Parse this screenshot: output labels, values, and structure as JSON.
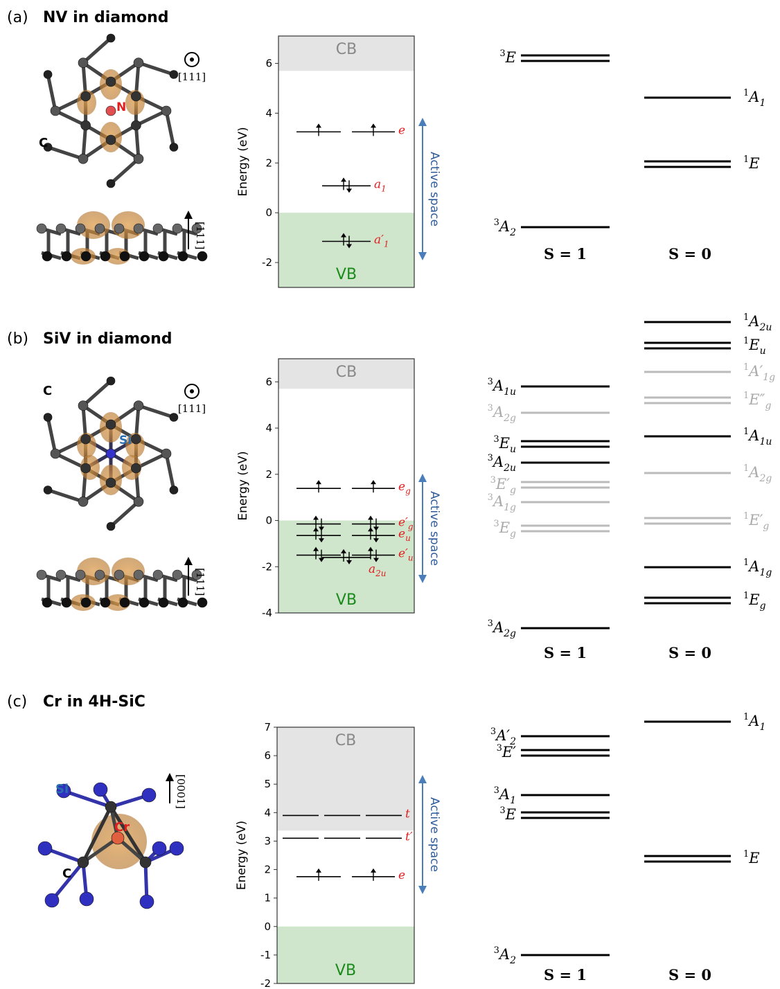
{
  "panels": [
    {
      "label": "(a)",
      "title": "NV in diamond",
      "structure": {
        "atoms": [
          "N",
          "C"
        ],
        "axis_top": "[111]",
        "axis_side": "[111]"
      },
      "energy": {
        "ylabel": "Energy (eV)",
        "ylim": [
          -3,
          7.1
        ],
        "yticks": [
          -2,
          0,
          2,
          4,
          6
        ],
        "cb_label": "CB",
        "cb_min": 5.7,
        "vb_label": "VB",
        "vb_max": 0,
        "active_label": "Active space",
        "orbitals": [
          {
            "name": "e",
            "energy": 3.25,
            "electrons": [
              1,
              1
            ]
          },
          {
            "name": "a",
            "sub": "1",
            "energy": 1.08,
            "electrons": [
              2
            ]
          },
          {
            "name": "a′",
            "sub": "1",
            "energy": -1.15,
            "electrons": [
              2
            ]
          }
        ]
      },
      "states": {
        "s1_label": "S = 1",
        "s0_label": "S = 0",
        "s1": [
          {
            "spin": "3",
            "term": "E",
            "color": "#000"
          },
          {
            "spin": "3",
            "term": "A",
            "sub": "2",
            "color": "#000"
          }
        ],
        "s0": [
          {
            "spin": "1",
            "term": "A",
            "sub": "1",
            "color": "#000"
          },
          {
            "spin": "1",
            "term": "E",
            "color": "#000"
          }
        ]
      }
    },
    {
      "label": "(b)",
      "title": "SiV in diamond",
      "structure": {
        "atoms": [
          "Si",
          "C"
        ],
        "axis_top": "[111]",
        "axis_side": "[111]"
      },
      "energy": {
        "ylabel": "Energy (eV)",
        "ylim": [
          -4,
          7
        ],
        "yticks": [
          -4,
          -2,
          0,
          2,
          4,
          6
        ],
        "cb_label": "CB",
        "cb_min": 5.7,
        "vb_label": "VB",
        "vb_max": 0,
        "active_label": "Active space",
        "orbitals": [
          {
            "name": "e",
            "sub": "g",
            "energy": 1.39,
            "electrons": [
              1,
              1
            ]
          },
          {
            "name": "e′",
            "sub": "g",
            "energy": -0.15,
            "electrons": [
              2,
              2
            ]
          },
          {
            "name": "e",
            "sub": "u",
            "energy": -0.65,
            "electrons": [
              2,
              2
            ]
          },
          {
            "name": "e′",
            "sub": "u",
            "energy": -1.5,
            "electrons": [
              2,
              2
            ]
          },
          {
            "name": "a",
            "sub": "2u",
            "energy": -1.6,
            "electrons": [
              2
            ]
          }
        ]
      },
      "states": {
        "s1_label": "S = 1",
        "s0_label": "S = 0",
        "s1": [
          {
            "spin": "3",
            "term": "A",
            "sub": "1u",
            "color": "#000"
          },
          {
            "spin": "3",
            "term": "A",
            "sub": "2g",
            "color": "#bbb"
          },
          {
            "spin": "3",
            "term": "E",
            "sub": "u",
            "color": "#000"
          },
          {
            "spin": "3",
            "term": "A",
            "sub": "2u",
            "color": "#000"
          },
          {
            "spin": "3",
            "term": "E′",
            "sub": "g",
            "color": "#bbb"
          },
          {
            "spin": "3",
            "term": "A",
            "sub": "1g",
            "color": "#bbb"
          },
          {
            "spin": "3",
            "term": "E",
            "sub": "g",
            "color": "#bbb"
          },
          {
            "spin": "3",
            "term": "A",
            "sub": "2g",
            "color": "#000"
          }
        ],
        "s0": [
          {
            "spin": "1",
            "term": "A",
            "sub": "2u",
            "color": "#000"
          },
          {
            "spin": "1",
            "term": "E",
            "sub": "u",
            "color": "#000"
          },
          {
            "spin": "1",
            "term": "A′",
            "sub": "1g",
            "color": "#bbb"
          },
          {
            "spin": "1",
            "term": "E″",
            "sub": "g",
            "color": "#bbb"
          },
          {
            "spin": "1",
            "term": "A",
            "sub": "1u",
            "color": "#000"
          },
          {
            "spin": "1",
            "term": "A",
            "sub": "2g",
            "color": "#bbb"
          },
          {
            "spin": "1",
            "term": "E′",
            "sub": "g",
            "color": "#bbb"
          },
          {
            "spin": "1",
            "term": "A",
            "sub": "1g",
            "color": "#000"
          },
          {
            "spin": "1",
            "term": "E",
            "sub": "g",
            "color": "#000"
          }
        ]
      }
    },
    {
      "label": "(c)",
      "title": "Cr in 4H-SiC",
      "structure": {
        "atoms": [
          "Si",
          "Cr",
          "C"
        ],
        "axis_side": "[0001]"
      },
      "energy": {
        "ylabel": "Energy (eV)",
        "ylim": [
          -2,
          7
        ],
        "yticks": [
          -2,
          -1,
          0,
          1,
          2,
          3,
          4,
          5,
          6,
          7
        ],
        "cb_label": "CB",
        "cb_min": 3.37,
        "vb_label": "VB",
        "vb_max": 0,
        "active_label": "Active space",
        "orbitals": [
          {
            "name": "t",
            "energy": 3.9,
            "electrons": [
              0,
              0,
              0
            ]
          },
          {
            "name": "t′",
            "energy": 3.1,
            "electrons": [
              0,
              0,
              0
            ]
          },
          {
            "name": "e",
            "energy": 1.75,
            "electrons": [
              1,
              1
            ]
          }
        ]
      },
      "states": {
        "s1_label": "S = 1",
        "s0_label": "S = 0",
        "s1": [
          {
            "spin": "3",
            "term": "A′",
            "sub": "2",
            "color": "#000"
          },
          {
            "spin": "3",
            "term": "E′",
            "color": "#000"
          },
          {
            "spin": "3",
            "term": "A",
            "sub": "1",
            "color": "#000"
          },
          {
            "spin": "3",
            "term": "E",
            "color": "#000"
          },
          {
            "spin": "3",
            "term": "A",
            "sub": "2",
            "color": "#000"
          }
        ],
        "s0": [
          {
            "spin": "1",
            "term": "A",
            "sub": "1",
            "color": "#000"
          },
          {
            "spin": "1",
            "term": "E",
            "color": "#000"
          }
        ]
      }
    }
  ]
}
